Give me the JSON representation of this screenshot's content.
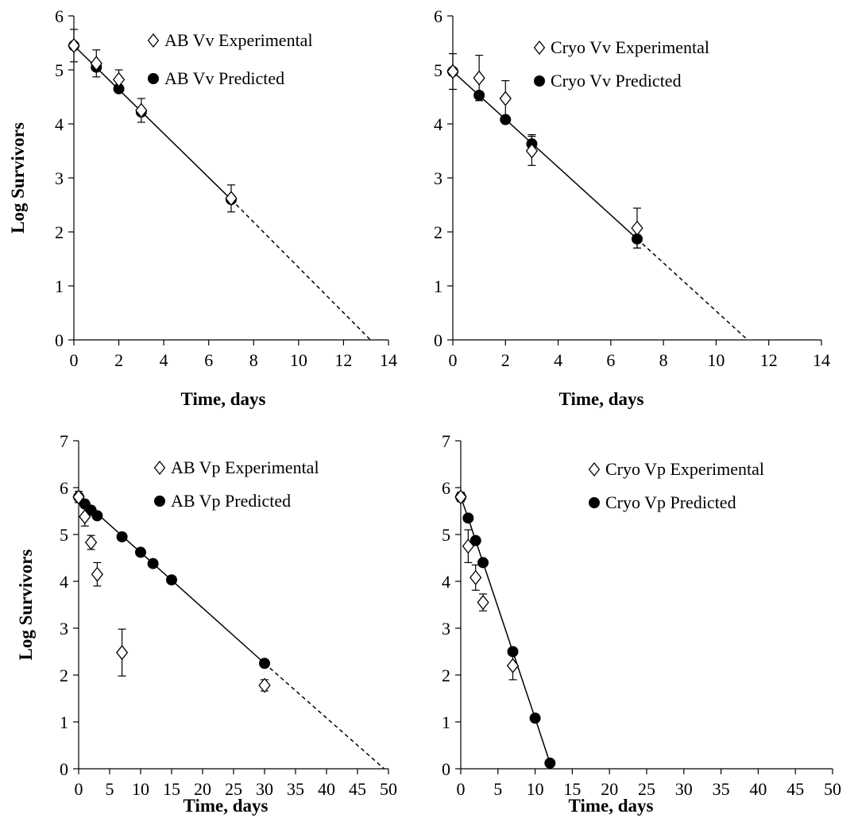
{
  "chart_data": [
    {
      "type": "scatter",
      "title": "",
      "xlabel": "Time, days",
      "ylabel": "Log Survivors",
      "xlim": [
        0,
        14
      ],
      "ylim": [
        0,
        6
      ],
      "xticks": [
        0,
        2,
        4,
        6,
        8,
        10,
        12,
        14
      ],
      "yticks": [
        0,
        1,
        2,
        3,
        4,
        5,
        6
      ],
      "legend_position": "top-right",
      "series": [
        {
          "name": "AB Vv Experimental",
          "marker": "diamond-open",
          "x": [
            0,
            1,
            2,
            3,
            7
          ],
          "y": [
            5.45,
            5.12,
            4.82,
            4.25,
            2.62
          ],
          "err": [
            0.3,
            0.25,
            0.18,
            0.22,
            0.25
          ]
        },
        {
          "name": "AB Vv Predicted",
          "marker": "circle-filled",
          "x": [
            0,
            1,
            2,
            3,
            7
          ],
          "y": [
            5.45,
            5.05,
            4.65,
            4.22,
            2.6
          ]
        }
      ],
      "fit_line": {
        "solid": [
          [
            0,
            5.45
          ],
          [
            7,
            2.6
          ]
        ],
        "dashed": [
          [
            7,
            2.6
          ],
          [
            13.2,
            0
          ]
        ]
      }
    },
    {
      "type": "scatter",
      "title": "",
      "xlabel": "Time, days",
      "ylabel": "",
      "xlim": [
        0,
        14
      ],
      "ylim": [
        0,
        6
      ],
      "xticks": [
        0,
        2,
        4,
        6,
        8,
        10,
        12,
        14
      ],
      "yticks": [
        0,
        1,
        2,
        3,
        4,
        5,
        6
      ],
      "legend_position": "top-right",
      "series": [
        {
          "name": "Cryo Vv Experimental",
          "marker": "diamond-open",
          "x": [
            0,
            1,
            2,
            3,
            7
          ],
          "y": [
            4.97,
            4.85,
            4.47,
            3.5,
            2.07
          ],
          "err": [
            0.33,
            0.42,
            0.33,
            0.27,
            0.37
          ]
        },
        {
          "name": "Cryo Vv Predicted",
          "marker": "circle-filled",
          "x": [
            0,
            1,
            2,
            3,
            7
          ],
          "y": [
            4.97,
            4.53,
            4.08,
            3.63,
            1.87
          ],
          "err": [
            0,
            0,
            0,
            0.17,
            0.17
          ]
        }
      ],
      "fit_line": {
        "solid": [
          [
            0,
            4.97
          ],
          [
            7,
            1.87
          ]
        ],
        "dashed": [
          [
            7,
            1.87
          ],
          [
            11.2,
            0
          ]
        ]
      }
    },
    {
      "type": "scatter",
      "title": "",
      "xlabel": "Time, days",
      "ylabel": "Log Survivors",
      "xlim": [
        0,
        50
      ],
      "ylim": [
        0,
        7
      ],
      "xticks": [
        0,
        5,
        10,
        15,
        20,
        25,
        30,
        35,
        40,
        45,
        50
      ],
      "yticks": [
        0,
        1,
        2,
        3,
        4,
        5,
        6,
        7
      ],
      "legend_position": "top-right",
      "series": [
        {
          "name": "AB Vp Experimental",
          "marker": "diamond-open",
          "x": [
            0,
            1,
            2,
            3,
            7,
            30
          ],
          "y": [
            5.8,
            5.38,
            4.83,
            4.15,
            2.48,
            1.78
          ],
          "err": [
            0.12,
            0.2,
            0.15,
            0.25,
            0.5,
            0.12
          ]
        },
        {
          "name": "AB Vp Predicted",
          "marker": "circle-filled",
          "x": [
            0,
            1,
            2,
            3,
            7,
            10,
            12,
            15,
            30
          ],
          "y": [
            5.8,
            5.65,
            5.52,
            5.4,
            4.95,
            4.62,
            4.38,
            4.03,
            2.25
          ]
        }
      ],
      "fit_line": {
        "solid": [
          [
            0,
            5.8
          ],
          [
            30,
            2.25
          ]
        ],
        "dashed": [
          [
            30,
            2.25
          ],
          [
            49.3,
            0
          ]
        ]
      }
    },
    {
      "type": "scatter",
      "title": "",
      "xlabel": "Time, days",
      "ylabel": "",
      "xlim": [
        0,
        50
      ],
      "ylim": [
        0,
        7
      ],
      "xticks": [
        0,
        5,
        10,
        15,
        20,
        25,
        30,
        35,
        40,
        45,
        50
      ],
      "yticks": [
        0,
        1,
        2,
        3,
        4,
        5,
        6,
        7
      ],
      "legend_position": "top-right",
      "series": [
        {
          "name": "Cryo Vp Experimental",
          "marker": "diamond-open",
          "x": [
            0,
            1,
            2,
            3,
            7
          ],
          "y": [
            5.8,
            4.75,
            4.08,
            3.55,
            2.2
          ],
          "err": [
            0.1,
            0.35,
            0.27,
            0.18,
            0.3
          ]
        },
        {
          "name": "Cryo Vp Predicted",
          "marker": "circle-filled",
          "x": [
            0,
            1,
            2,
            3,
            7,
            10,
            12
          ],
          "y": [
            5.8,
            5.35,
            4.87,
            4.4,
            2.5,
            1.08,
            0.12
          ]
        }
      ],
      "fit_line": {
        "solid": [
          [
            0,
            5.8
          ],
          [
            1,
            5.35
          ],
          [
            2,
            4.87
          ],
          [
            3,
            4.4
          ],
          [
            7,
            2.5
          ],
          [
            10,
            1.08
          ],
          [
            12,
            0.12
          ]
        ],
        "dashed": []
      }
    }
  ]
}
